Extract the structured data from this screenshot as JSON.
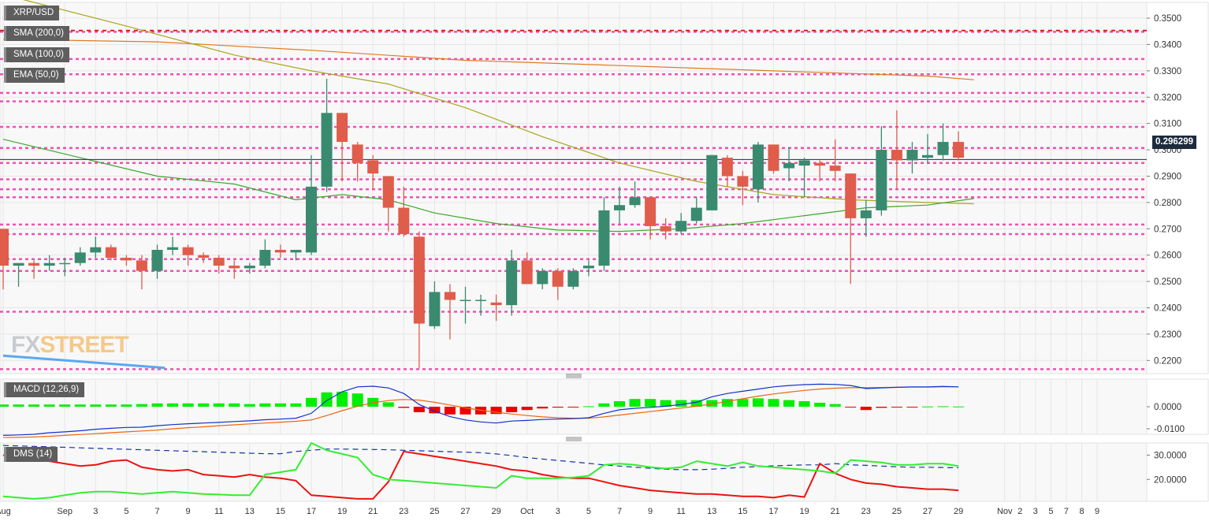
{
  "labels": {
    "symbol": "XRP/USD",
    "sma200": "SMA (200,0)",
    "sma100": "SMA (100,0)",
    "ema50": "EMA (50,0)",
    "macd": "MACD (12,26,9)",
    "dms": "DMS (14)"
  },
  "watermark": {
    "part1": "FX",
    "part2": "STREET"
  },
  "colors": {
    "up": "#3a8a70",
    "down": "#e05c4b",
    "level": "#f050b8",
    "resistance": "#d62020",
    "sma200": "#e07b1e",
    "sma100": "#a8a61e",
    "ema50": "#3aa82a",
    "macd_line": "#1133cc",
    "signal_line": "#ee6611",
    "hist_pos": "#00ee00",
    "hist_neg": "#ee0000",
    "dms_plus": "#33ee33",
    "dms_minus": "#ee1111",
    "adx": "#1133aa",
    "trendline": "#5aa8f0",
    "price_line": "#1d2b3d"
  },
  "chart_data": {
    "type": "candlestick",
    "symbol": "XRP/USD",
    "current_price": 0.296299,
    "current_price_label": "0.296299",
    "y_range": [
      0.215,
      0.356
    ],
    "y_ticks": [
      "0.3500",
      "0.3400",
      "0.3300",
      "0.3200",
      "0.3100",
      "0.3000",
      "0.2900",
      "0.2800",
      "0.2700",
      "0.2600",
      "0.2500",
      "0.2400",
      "0.2300",
      "0.2200"
    ],
    "x_labels": [
      [
        "Aug",
        0
      ],
      [
        "Sep",
        4
      ],
      [
        "3",
        6
      ],
      [
        "5",
        8
      ],
      [
        "7",
        10
      ],
      [
        "9",
        12
      ],
      [
        "11",
        14
      ],
      [
        "13",
        16
      ],
      [
        "15",
        18
      ],
      [
        "17",
        20
      ],
      [
        "19",
        22
      ],
      [
        "21",
        24
      ],
      [
        "23",
        26
      ],
      [
        "25",
        28
      ],
      [
        "27",
        30
      ],
      [
        "29",
        32
      ],
      [
        "Oct",
        34
      ],
      [
        "3",
        36
      ],
      [
        "5",
        38
      ],
      [
        "7",
        40
      ],
      [
        "9",
        42
      ],
      [
        "11",
        44
      ],
      [
        "13",
        46
      ],
      [
        "15",
        48
      ],
      [
        "17",
        50
      ],
      [
        "19",
        52
      ],
      [
        "21",
        54
      ],
      [
        "23",
        56
      ],
      [
        "25",
        58
      ],
      [
        "27",
        60
      ],
      [
        "29",
        62
      ],
      [
        "Nov",
        65
      ],
      [
        "2",
        66
      ],
      [
        "3",
        67
      ],
      [
        "5",
        68
      ],
      [
        "7",
        69
      ],
      [
        "8",
        70
      ],
      [
        "9",
        71
      ]
    ],
    "candles": [
      [
        0.27,
        0.269,
        0.247,
        0.256
      ],
      [
        0.256,
        0.257,
        0.248,
        0.257
      ],
      [
        0.257,
        0.258,
        0.251,
        0.256
      ],
      [
        0.256,
        0.26,
        0.254,
        0.257
      ],
      [
        0.257,
        0.259,
        0.252,
        0.257
      ],
      [
        0.257,
        0.263,
        0.256,
        0.261
      ],
      [
        0.261,
        0.267,
        0.259,
        0.263
      ],
      [
        0.263,
        0.264,
        0.258,
        0.259
      ],
      [
        0.259,
        0.26,
        0.256,
        0.258
      ],
      [
        0.258,
        0.26,
        0.247,
        0.254
      ],
      [
        0.254,
        0.264,
        0.251,
        0.262
      ],
      [
        0.262,
        0.267,
        0.26,
        0.263
      ],
      [
        0.263,
        0.264,
        0.256,
        0.26
      ],
      [
        0.26,
        0.261,
        0.257,
        0.259
      ],
      [
        0.259,
        0.26,
        0.253,
        0.256
      ],
      [
        0.256,
        0.258,
        0.251,
        0.255
      ],
      [
        0.255,
        0.257,
        0.253,
        0.256
      ],
      [
        0.256,
        0.266,
        0.255,
        0.262
      ],
      [
        0.262,
        0.264,
        0.259,
        0.261
      ],
      [
        0.261,
        0.262,
        0.258,
        0.262
      ],
      [
        0.261,
        0.298,
        0.26,
        0.286
      ],
      [
        0.286,
        0.327,
        0.284,
        0.314
      ],
      [
        0.314,
        0.314,
        0.288,
        0.303
      ],
      [
        0.302,
        0.303,
        0.288,
        0.295
      ],
      [
        0.296,
        0.298,
        0.285,
        0.291
      ],
      [
        0.29,
        0.29,
        0.269,
        0.278
      ],
      [
        0.278,
        0.286,
        0.267,
        0.268
      ],
      [
        0.267,
        0.269,
        0.217,
        0.234
      ],
      [
        0.233,
        0.25,
        0.232,
        0.246
      ],
      [
        0.246,
        0.249,
        0.228,
        0.243
      ],
      [
        0.243,
        0.248,
        0.234,
        0.243
      ],
      [
        0.243,
        0.245,
        0.237,
        0.243
      ],
      [
        0.242,
        0.245,
        0.235,
        0.241
      ],
      [
        0.241,
        0.262,
        0.237,
        0.258
      ],
      [
        0.258,
        0.261,
        0.249,
        0.249
      ],
      [
        0.249,
        0.255,
        0.247,
        0.254
      ],
      [
        0.254,
        0.255,
        0.243,
        0.248
      ],
      [
        0.248,
        0.255,
        0.247,
        0.254
      ],
      [
        0.255,
        0.258,
        0.252,
        0.256
      ],
      [
        0.256,
        0.282,
        0.254,
        0.277
      ],
      [
        0.277,
        0.286,
        0.272,
        0.279
      ],
      [
        0.279,
        0.288,
        0.278,
        0.282
      ],
      [
        0.282,
        0.282,
        0.266,
        0.271
      ],
      [
        0.271,
        0.274,
        0.266,
        0.269
      ],
      [
        0.269,
        0.276,
        0.268,
        0.273
      ],
      [
        0.273,
        0.282,
        0.272,
        0.278
      ],
      [
        0.277,
        0.298,
        0.277,
        0.298
      ],
      [
        0.297,
        0.298,
        0.286,
        0.29
      ],
      [
        0.29,
        0.292,
        0.279,
        0.286
      ],
      [
        0.285,
        0.303,
        0.28,
        0.302
      ],
      [
        0.302,
        0.302,
        0.291,
        0.292
      ],
      [
        0.293,
        0.301,
        0.288,
        0.295
      ],
      [
        0.294,
        0.297,
        0.282,
        0.296
      ],
      [
        0.295,
        0.296,
        0.288,
        0.294
      ],
      [
        0.294,
        0.304,
        0.288,
        0.292
      ],
      [
        0.291,
        0.291,
        0.249,
        0.274
      ],
      [
        0.274,
        0.281,
        0.267,
        0.277
      ],
      [
        0.277,
        0.309,
        0.275,
        0.3
      ],
      [
        0.3,
        0.315,
        0.285,
        0.296
      ],
      [
        0.296,
        0.303,
        0.291,
        0.3
      ],
      [
        0.297,
        0.306,
        0.295,
        0.298
      ],
      [
        0.298,
        0.31,
        0.296,
        0.303
      ],
      [
        0.303,
        0.307,
        0.296,
        0.297
      ]
    ],
    "horizontal_levels": [
      0.3448,
      0.3345,
      0.3287,
      0.3216,
      0.3184,
      0.3087,
      0.3007,
      0.295,
      0.2888,
      0.285,
      0.282,
      0.2716,
      0.268,
      0.2585,
      0.254,
      0.2385,
      0.2167
    ],
    "red_level": 0.3453,
    "sma200": [
      [
        0,
        0.342
      ],
      [
        10,
        0.341
      ],
      [
        20,
        0.3378
      ],
      [
        30,
        0.334
      ],
      [
        40,
        0.332
      ],
      [
        50,
        0.33
      ],
      [
        60,
        0.328
      ],
      [
        63,
        0.3266
      ]
    ],
    "sma100": [
      [
        0,
        0.359
      ],
      [
        8,
        0.347
      ],
      [
        15,
        0.336
      ],
      [
        20,
        0.33
      ],
      [
        25,
        0.325
      ],
      [
        30,
        0.316
      ],
      [
        35,
        0.305
      ],
      [
        40,
        0.295
      ],
      [
        45,
        0.288
      ],
      [
        50,
        0.283
      ],
      [
        55,
        0.281
      ],
      [
        60,
        0.28
      ],
      [
        63,
        0.2795
      ]
    ],
    "ema50": [
      [
        0,
        0.304
      ],
      [
        5,
        0.297
      ],
      [
        10,
        0.29
      ],
      [
        15,
        0.287
      ],
      [
        19,
        0.281
      ],
      [
        22,
        0.283
      ],
      [
        25,
        0.281
      ],
      [
        28,
        0.276
      ],
      [
        32,
        0.272
      ],
      [
        36,
        0.2695
      ],
      [
        40,
        0.269
      ],
      [
        44,
        0.27
      ],
      [
        48,
        0.272
      ],
      [
        52,
        0.275
      ],
      [
        56,
        0.278
      ],
      [
        60,
        0.279
      ],
      [
        63,
        0.2815
      ]
    ],
    "trendline": [
      [
        0,
        0.2218
      ],
      [
        10.5,
        0.2172
      ]
    ],
    "macd": {
      "y_range": [
        -0.0125,
        0.0125
      ],
      "ticks": [
        "0.0000",
        "-0.0100"
      ],
      "hist": [
        0.001,
        0.001,
        0.001,
        0.001,
        0.001,
        0.001,
        0.001,
        0.001,
        0.001,
        0.0012,
        0.0015,
        0.0015,
        0.0015,
        0.0015,
        0.0015,
        0.0015,
        0.0012,
        0.0015,
        0.0015,
        0.0015,
        0.004,
        0.0065,
        0.0068,
        0.006,
        0.004,
        0.002,
        -0.0005,
        -0.0025,
        -0.003,
        -0.0035,
        -0.0035,
        -0.0035,
        -0.0033,
        -0.0025,
        -0.0015,
        -0.0008,
        -0.0004,
        -0.0002,
        0.0002,
        0.0015,
        0.0025,
        0.0035,
        0.0035,
        0.003,
        0.003,
        0.003,
        0.003,
        0.0035,
        0.0035,
        0.0038,
        0.0035,
        0.003,
        0.0025,
        0.0018,
        0.0012,
        -0.0003,
        -0.0015,
        -0.0005,
        -0.0002,
        -0.0001,
        0.0001,
        0.0002,
        0.0001
      ],
      "macd_line": [
        -0.013,
        -0.0128,
        -0.0125,
        -0.0118,
        -0.0114,
        -0.0109,
        -0.0102,
        -0.0098,
        -0.0094,
        -0.0093,
        -0.0086,
        -0.0081,
        -0.0077,
        -0.0074,
        -0.0071,
        -0.0067,
        -0.0064,
        -0.0059,
        -0.0056,
        -0.0052,
        -0.003,
        0.0028,
        0.0068,
        0.009,
        0.0093,
        0.0085,
        0.006,
        0.001,
        -0.002,
        -0.0045,
        -0.006,
        -0.0069,
        -0.0074,
        -0.0065,
        -0.0062,
        -0.0058,
        -0.0056,
        -0.0054,
        -0.005,
        -0.003,
        -0.0014,
        -0.0007,
        -0.0003,
        0.0002,
        0.001,
        0.002,
        0.0045,
        0.006,
        0.007,
        0.008,
        0.009,
        0.0096,
        0.01,
        0.0102,
        0.0101,
        0.0096,
        0.0082,
        0.0085,
        0.0088,
        0.009,
        0.009,
        0.0092,
        0.009
      ],
      "signal_line": [
        -0.014,
        -0.0139,
        -0.0137,
        -0.0134,
        -0.013,
        -0.0126,
        -0.0122,
        -0.0118,
        -0.0114,
        -0.011,
        -0.0106,
        -0.01,
        -0.0095,
        -0.0091,
        -0.0086,
        -0.0082,
        -0.0078,
        -0.0074,
        -0.007,
        -0.0066,
        -0.006,
        -0.004,
        -0.0018,
        0.0002,
        0.0018,
        0.0028,
        0.0033,
        0.003,
        0.002,
        0.0008,
        -0.0005,
        -0.0016,
        -0.0025,
        -0.0033,
        -0.004,
        -0.0046,
        -0.005,
        -0.0052,
        -0.0052,
        -0.0046,
        -0.0038,
        -0.003,
        -0.0022,
        -0.0014,
        -0.0006,
        0.0002,
        0.0012,
        0.0024,
        0.0036,
        0.0048,
        0.0058,
        0.0066,
        0.0074,
        0.008,
        0.0084,
        0.0086,
        0.0086,
        0.0087,
        0.0088,
        0.0089,
        0.0089,
        0.009,
        0.009
      ]
    },
    "dms": {
      "y_range": [
        11,
        35
      ],
      "ticks": [
        "30.0000",
        "20.0000"
      ],
      "plus_di": [
        13.0,
        12.5,
        12.0,
        12.5,
        13.5,
        14.5,
        15.0,
        15.0,
        14.5,
        14.0,
        14.5,
        15.0,
        14.5,
        14.0,
        13.8,
        13.5,
        13.5,
        22.0,
        23.0,
        24.0,
        35.0,
        32.0,
        30.5,
        29.0,
        22.0,
        20.0,
        19.5,
        19.0,
        18.5,
        18.0,
        17.5,
        17.0,
        16.5,
        21.5,
        20.5,
        20.5,
        20.5,
        20.8,
        21.5,
        26.0,
        26.5,
        26.0,
        25.0,
        24.5,
        25.0,
        27.5,
        26.5,
        25.5,
        27.0,
        25.5,
        25.0,
        24.5,
        24.0,
        23.5,
        22.5,
        28.0,
        27.5,
        27.0,
        26.0,
        26.0,
        26.5,
        26.5,
        25.5
      ],
      "minus_di": [
        30.0,
        29.0,
        28.0,
        27.5,
        26.5,
        25.5,
        26.0,
        27.5,
        28.0,
        25.0,
        24.0,
        23.5,
        24.0,
        22.0,
        21.5,
        21.0,
        22.0,
        21.0,
        20.5,
        19.5,
        13.5,
        13.0,
        12.5,
        12.0,
        12.0,
        19.0,
        31.5,
        30.5,
        29.5,
        28.5,
        27.5,
        26.5,
        25.5,
        24.0,
        23.5,
        22.0,
        21.0,
        20.5,
        20.5,
        19.0,
        17.5,
        16.5,
        15.5,
        15.0,
        14.5,
        14.0,
        14.0,
        13.5,
        13.0,
        13.0,
        12.5,
        13.5,
        12.8,
        26.5,
        22.5,
        20.0,
        18.5,
        18.0,
        17.0,
        16.5,
        16.0,
        16.0,
        15.5
      ],
      "adx": [
        34.0,
        33.8,
        33.6,
        33.4,
        33.2,
        33.0,
        32.8,
        32.6,
        32.4,
        32.2,
        32.0,
        31.8,
        31.6,
        31.4,
        31.2,
        31.0,
        30.8,
        30.6,
        30.6,
        31.5,
        32.0,
        32.5,
        32.5,
        32.4,
        32.3,
        32.2,
        32.0,
        31.8,
        31.6,
        31.4,
        31.2,
        31.0,
        30.5,
        29.8,
        29.0,
        28.4,
        27.8,
        27.2,
        26.6,
        26.0,
        25.5,
        25.0,
        24.6,
        24.2,
        24.0,
        24.0,
        24.2,
        24.6,
        25.0,
        25.3,
        25.6,
        25.8,
        26.0,
        26.0,
        26.5,
        26.0,
        25.8,
        25.5,
        25.2,
        25.0,
        25.0,
        24.9,
        24.8
      ]
    }
  }
}
